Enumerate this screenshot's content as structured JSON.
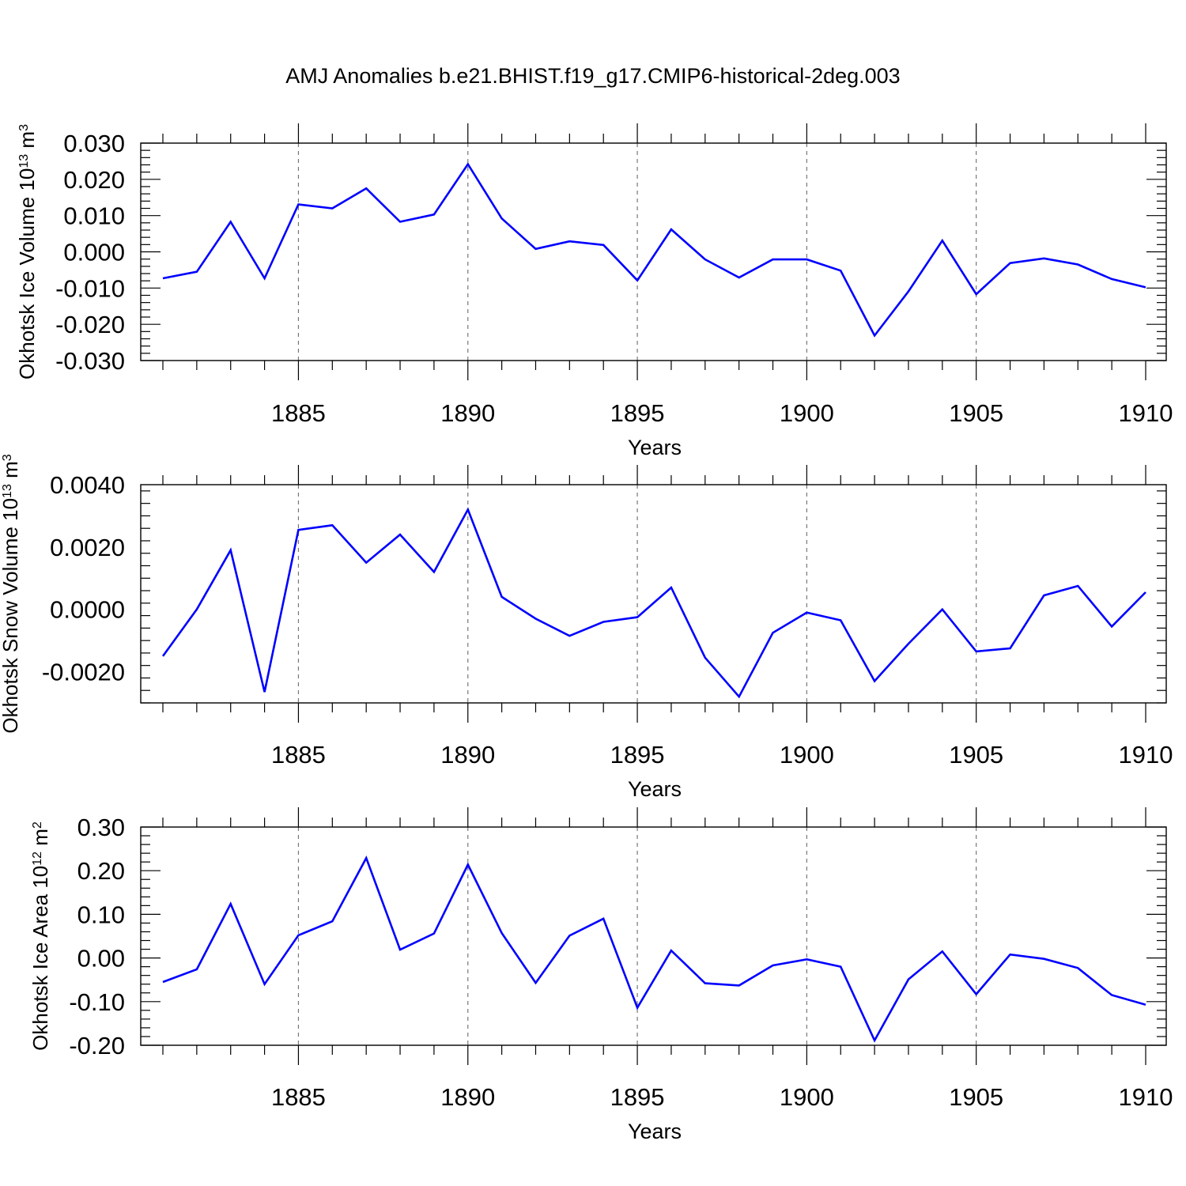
{
  "title": "AMJ Anomalies b.e21.BHIST.f19_g17.CMIP6-historical-2deg.003",
  "colors": {
    "line": "#0000ff",
    "axis": "#000000",
    "grid": "#777777"
  },
  "chart_data": [
    {
      "type": "line",
      "ylabel": {
        "base": "Okhotsk Ice Volume 10",
        "exp": "13",
        "unit": " m",
        "unit_exp": "3"
      },
      "xlabel": "Years",
      "x_ticks": [
        "1885",
        "1890",
        "1895",
        "1900",
        "1905",
        "1910"
      ],
      "y_ticks": [
        "0.030",
        "0.020",
        "0.010",
        "0.000",
        "-0.010",
        "-0.020",
        "-0.030"
      ],
      "y_tick_values": [
        0.03,
        0.02,
        0.01,
        0.0,
        -0.01,
        -0.02,
        -0.03
      ],
      "xlim": [
        1880.5,
        1910
      ],
      "ylim": [
        -0.03,
        0.03
      ],
      "grid": "vertical dashed at labeled years",
      "series": [
        {
          "x": [
            1881,
            1882,
            1883,
            1884,
            1885,
            1886,
            1887,
            1888,
            1889,
            1890,
            1891,
            1892,
            1893,
            1894,
            1895,
            1896,
            1897,
            1898,
            1899,
            1900,
            1901,
            1902,
            1903,
            1904,
            1905,
            1906,
            1907,
            1908,
            1909,
            1910
          ],
          "values": [
            -0.0073,
            -0.0055,
            0.0083,
            -0.0073,
            0.0131,
            0.012,
            0.0175,
            0.0083,
            0.0103,
            0.0242,
            0.0092,
            0.0008,
            0.0029,
            0.0019,
            -0.0079,
            0.0062,
            -0.0021,
            -0.0071,
            -0.0021,
            -0.0021,
            -0.0052,
            -0.0231,
            -0.0109,
            0.0031,
            -0.0117,
            -0.0031,
            -0.0018,
            -0.0035,
            -0.0075,
            -0.0098
          ]
        }
      ]
    },
    {
      "type": "line",
      "ylabel": {
        "base": "Okhotsk Snow Volume 10",
        "exp": "13",
        "unit": " m",
        "unit_exp": "3"
      },
      "xlabel": "Years",
      "x_ticks": [
        "1885",
        "1890",
        "1895",
        "1900",
        "1905",
        "1910"
      ],
      "y_ticks": [
        "0.0040",
        "0.0020",
        "0.0000",
        "-0.0020"
      ],
      "y_tick_values": [
        0.004,
        0.002,
        0.0,
        -0.002
      ],
      "xlim": [
        1880.5,
        1910
      ],
      "ylim": [
        -0.003,
        0.004
      ],
      "grid": "vertical dashed at labeled years",
      "series": [
        {
          "x": [
            1881,
            1882,
            1883,
            1884,
            1885,
            1886,
            1887,
            1888,
            1889,
            1890,
            1891,
            1892,
            1893,
            1894,
            1895,
            1896,
            1897,
            1898,
            1899,
            1900,
            1901,
            1902,
            1903,
            1904,
            1905,
            1906,
            1907,
            1908,
            1909,
            1910
          ],
          "values": [
            -0.0015,
            0.0,
            0.0019,
            -0.00265,
            0.00255,
            0.0027,
            0.0015,
            0.0024,
            0.0012,
            0.0032,
            0.0004,
            -0.0003,
            -0.00085,
            -0.0004,
            -0.00025,
            0.0007,
            -0.00155,
            -0.0028,
            -0.00075,
            -0.0001,
            -0.00035,
            -0.0023,
            -0.0011,
            0.0,
            -0.00135,
            -0.00125,
            0.00045,
            0.00075,
            -0.00055,
            0.00055
          ]
        }
      ]
    },
    {
      "type": "line",
      "ylabel": {
        "base": "Okhotsk Ice Area 10",
        "exp": "12",
        "unit": " m",
        "unit_exp": "2"
      },
      "xlabel": "Years",
      "x_ticks": [
        "1885",
        "1890",
        "1895",
        "1900",
        "1905",
        "1910"
      ],
      "y_ticks": [
        "0.30",
        "0.20",
        "0.10",
        "0.00",
        "-0.10",
        "-0.20"
      ],
      "y_tick_values": [
        0.3,
        0.2,
        0.1,
        0.0,
        -0.1,
        -0.2
      ],
      "xlim": [
        1880.5,
        1910
      ],
      "ylim": [
        -0.2,
        0.3
      ],
      "grid": "vertical dashed at labeled years",
      "series": [
        {
          "x": [
            1881,
            1882,
            1883,
            1884,
            1885,
            1886,
            1887,
            1888,
            1889,
            1890,
            1891,
            1892,
            1893,
            1894,
            1895,
            1896,
            1897,
            1898,
            1899,
            1900,
            1901,
            1902,
            1903,
            1904,
            1905,
            1906,
            1907,
            1908,
            1909,
            1910
          ],
          "values": [
            -0.055,
            -0.026,
            0.124,
            -0.06,
            0.052,
            0.084,
            0.229,
            0.019,
            0.056,
            0.214,
            0.057,
            -0.057,
            0.051,
            0.09,
            -0.114,
            0.017,
            -0.058,
            -0.063,
            -0.017,
            -0.003,
            -0.02,
            -0.189,
            -0.049,
            0.015,
            -0.083,
            0.008,
            -0.002,
            -0.023,
            -0.085,
            -0.107
          ]
        }
      ]
    }
  ]
}
